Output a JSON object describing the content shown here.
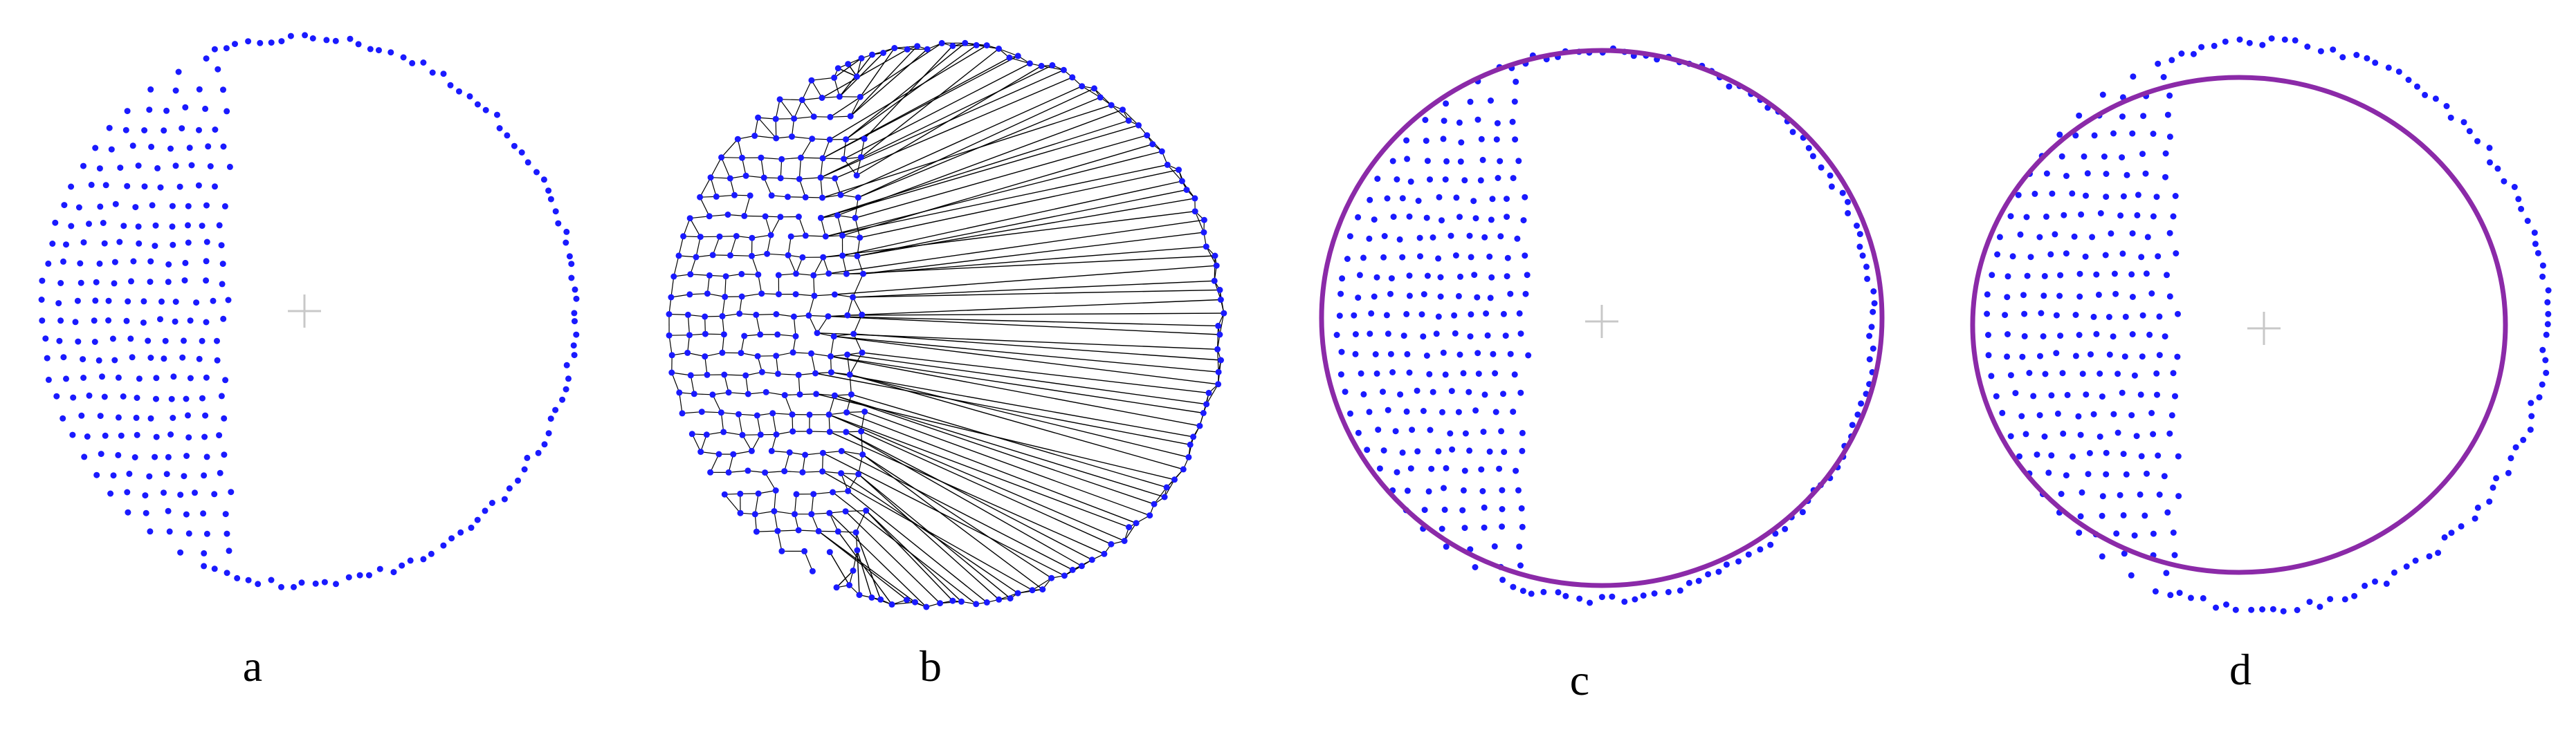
{
  "panels": [
    {
      "label": "a",
      "view": "point-cloud"
    },
    {
      "label": "b",
      "view": "delaunay-triangulation"
    },
    {
      "label": "c",
      "view": "fitted-circle"
    },
    {
      "label": "d",
      "view": "fitted-circle-offset"
    }
  ],
  "colors": {
    "points": "#1a1aff",
    "mesh": "#000000",
    "fit_circle": "#8b2aa8",
    "center_mark": "#c8c8c8",
    "background": "#ffffff"
  }
}
